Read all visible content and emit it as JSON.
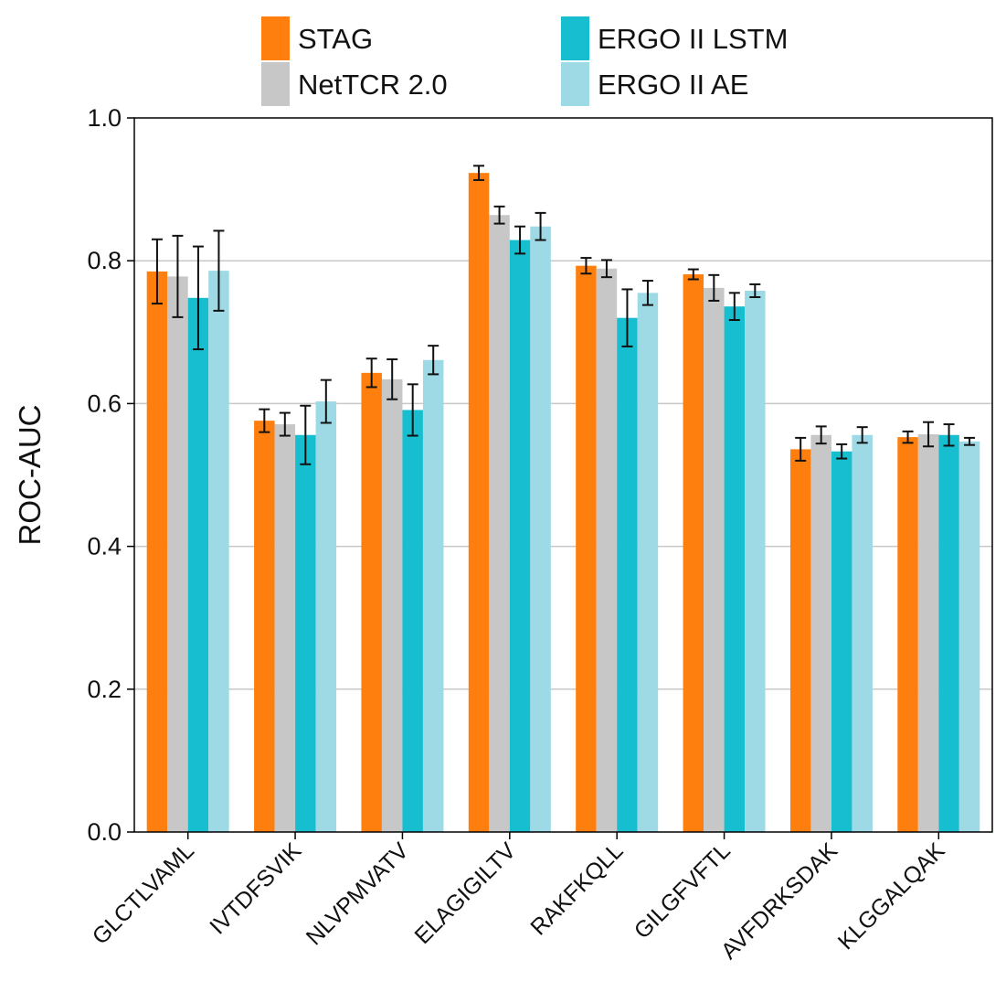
{
  "chart_data": {
    "type": "bar",
    "ylabel": "ROC-AUC",
    "xlabel": "",
    "ylim": [
      0,
      1.0
    ],
    "yticks": [
      "0.0",
      "0.2",
      "0.4",
      "0.6",
      "0.8",
      "1.0"
    ],
    "grid": "horizontal",
    "legend_position": "top",
    "categories": [
      "GLCTLVAML",
      "IVTDFSVIK",
      "NLVPMVATV",
      "ELAGIGILTV",
      "RAKFKQLL",
      "GILGFVFTL",
      "AVFDRKSDAK",
      "KLGGALQAK"
    ],
    "series": [
      {
        "name": "STAG",
        "color": "#FF7F0E",
        "values": [
          0.785,
          0.576,
          0.643,
          0.923,
          0.793,
          0.781,
          0.536,
          0.553
        ],
        "errors": [
          0.045,
          0.016,
          0.02,
          0.01,
          0.011,
          0.007,
          0.016,
          0.008
        ]
      },
      {
        "name": "NetTCR 2.0",
        "color": "#C7C7C7",
        "values": [
          0.778,
          0.571,
          0.634,
          0.864,
          0.789,
          0.762,
          0.556,
          0.557
        ],
        "errors": [
          0.057,
          0.016,
          0.028,
          0.012,
          0.012,
          0.018,
          0.012,
          0.017
        ]
      },
      {
        "name": "ERGO II LSTM",
        "color": "#17BECF",
        "values": [
          0.748,
          0.556,
          0.591,
          0.829,
          0.72,
          0.736,
          0.533,
          0.556
        ],
        "errors": [
          0.072,
          0.041,
          0.036,
          0.019,
          0.04,
          0.019,
          0.01,
          0.015
        ]
      },
      {
        "name": "ERGO II AE",
        "color": "#9EDAE5",
        "values": [
          0.786,
          0.603,
          0.661,
          0.848,
          0.755,
          0.758,
          0.556,
          0.547
        ],
        "errors": [
          0.056,
          0.03,
          0.02,
          0.019,
          0.017,
          0.009,
          0.011,
          0.005
        ]
      }
    ]
  }
}
